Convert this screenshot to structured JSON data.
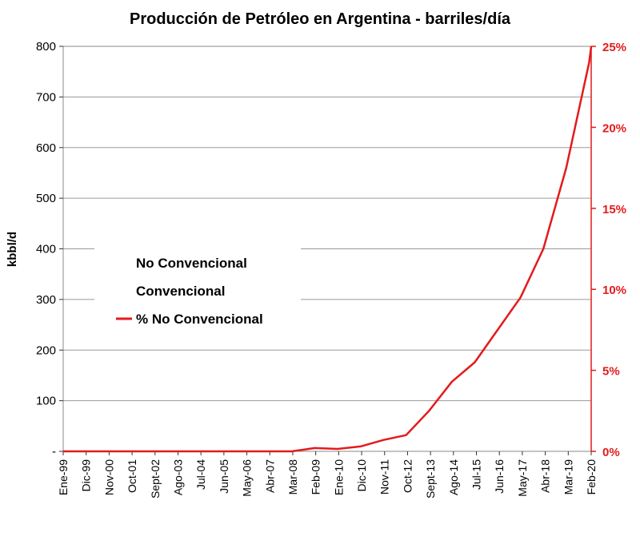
{
  "chart_data": {
    "type": "line",
    "title": "Producción de Petróleo en Argentina - barriles/día",
    "ylabel": "kbbl/d",
    "xlabel": "",
    "ylim": [
      0,
      800
    ],
    "y_ticks": [
      "-",
      "100",
      "200",
      "300",
      "400",
      "500",
      "600",
      "700",
      "800"
    ],
    "y2lim": [
      0,
      25
    ],
    "y2_ticks": [
      "0%",
      "5%",
      "10%",
      "15%",
      "20%",
      "25%"
    ],
    "x_tick_labels": [
      "Ene-99",
      "Dic-99",
      "Nov-00",
      "Oct-01",
      "Sept-02",
      "Ago-03",
      "Jul-04",
      "Jun-05",
      "May-06",
      "Abr-07",
      "Mar-08",
      "Feb-09",
      "Ene-10",
      "Dic-10",
      "Nov-11",
      "Oct-12",
      "Sept-13",
      "Ago-14",
      "Jul-15",
      "Jun-16",
      "May-17",
      "Abr-18",
      "Mar-19",
      "Feb-20"
    ],
    "legend": [
      {
        "label": "No Convencional",
        "color": "",
        "shown_marker": false
      },
      {
        "label": "Convencional",
        "color": "",
        "shown_marker": false
      },
      {
        "label": "% No Convencional",
        "color": "#e41a1c",
        "shown_marker": true
      }
    ],
    "series": [
      {
        "name": "% No Convencional",
        "axis": "right",
        "color": "#e41a1c",
        "x": [
          0,
          11,
          22,
          33,
          44,
          55,
          66,
          77,
          88,
          99,
          110,
          121,
          132,
          143,
          154,
          165,
          176,
          187,
          198,
          209,
          220,
          231,
          242,
          253,
          254
        ],
        "values": [
          0,
          0,
          0,
          0,
          0,
          0,
          0,
          0,
          0,
          0,
          0,
          0.2,
          0.15,
          0.3,
          0.7,
          1.0,
          2.5,
          4.3,
          5.5,
          7.5,
          9.5,
          12.5,
          17.5,
          24,
          25
        ]
      }
    ]
  }
}
